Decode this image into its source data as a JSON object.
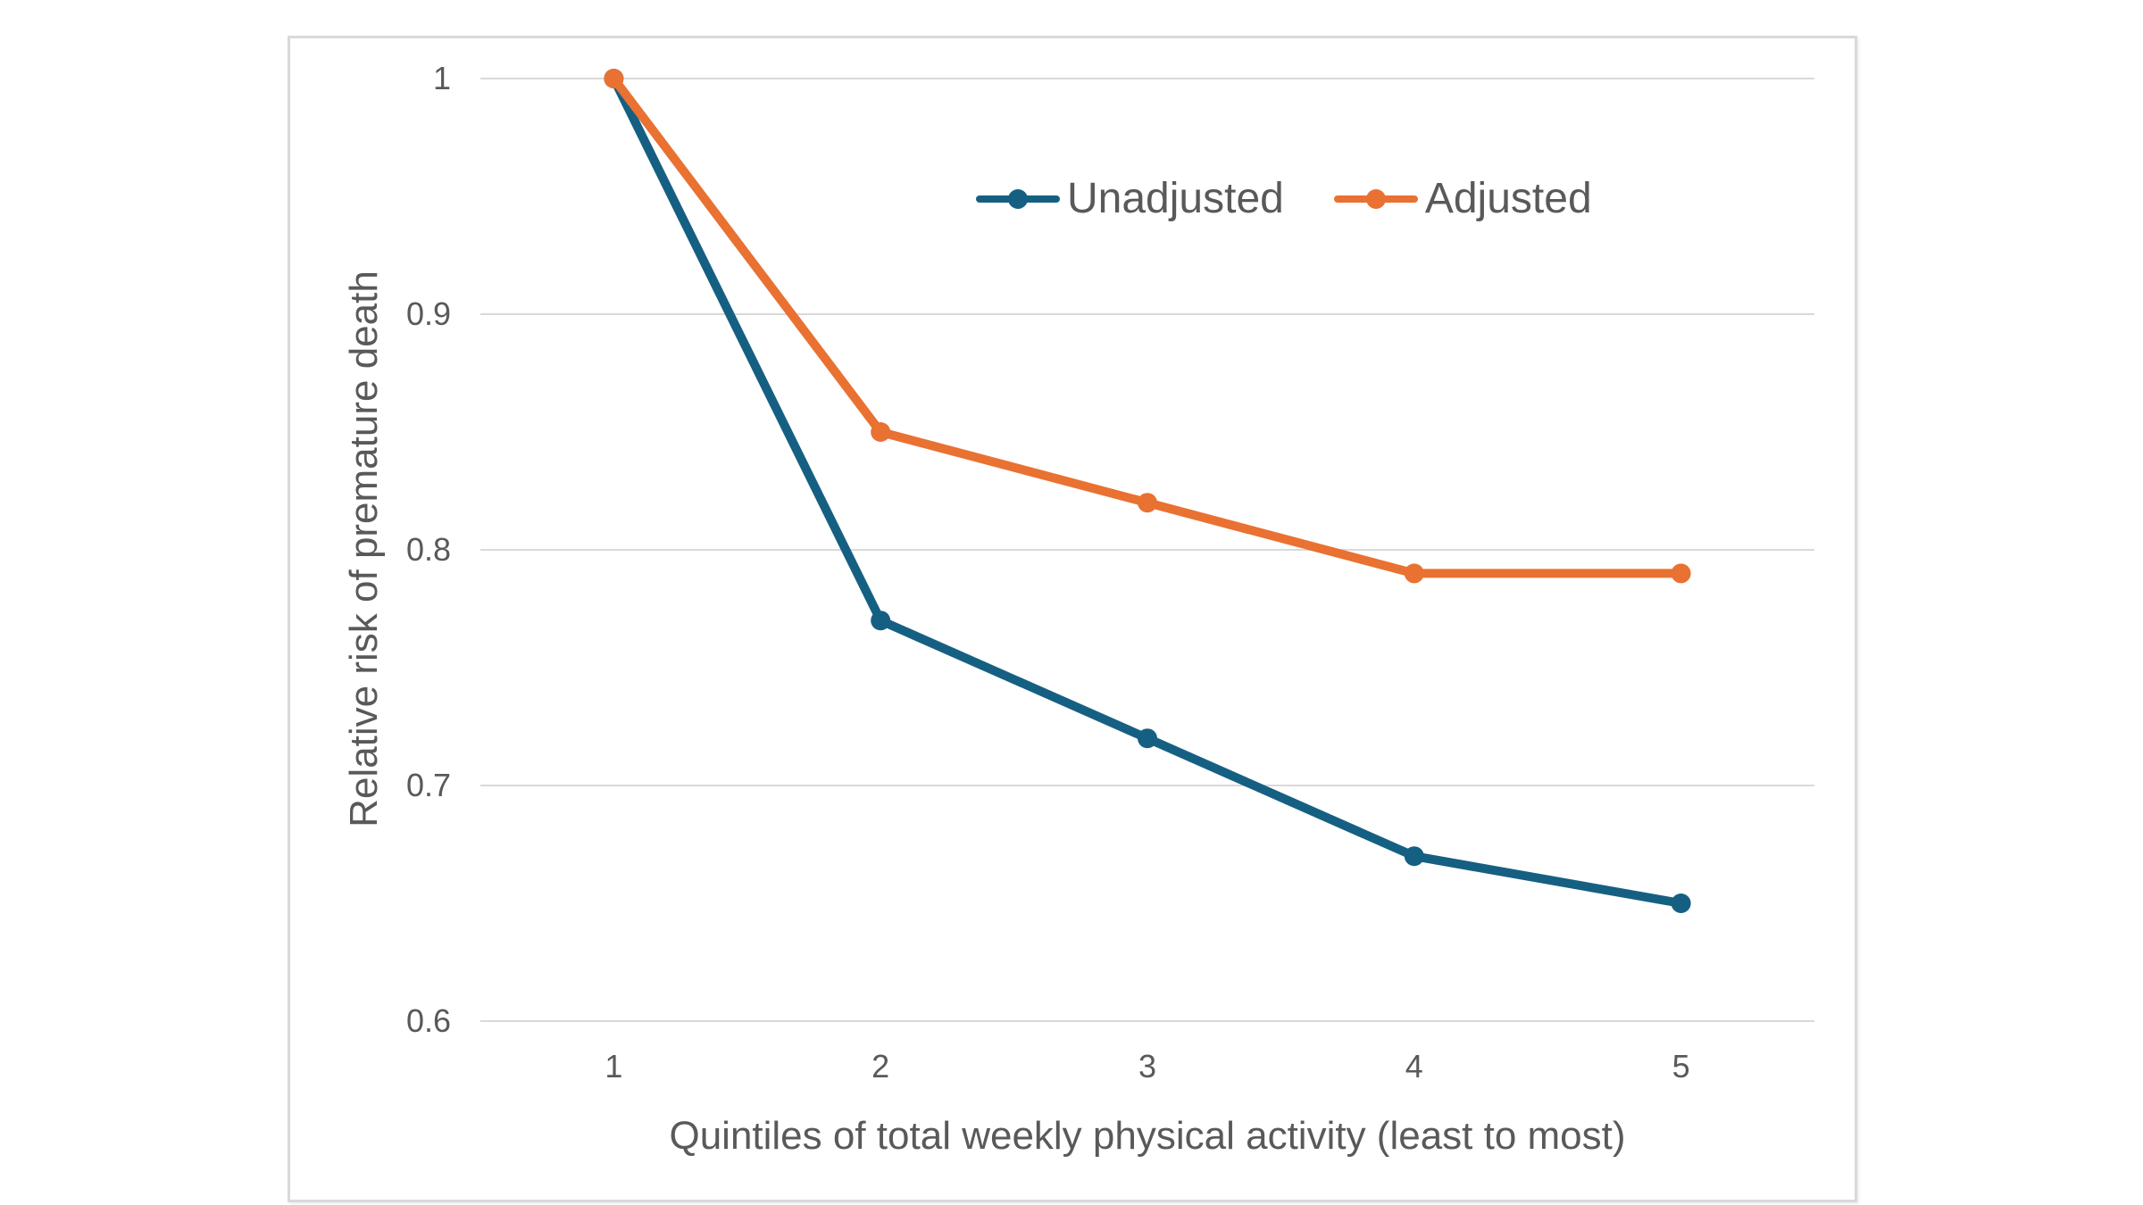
{
  "chart_data": {
    "type": "line",
    "categories": [
      "1",
      "2",
      "3",
      "4",
      "5"
    ],
    "series": [
      {
        "name": "Unadjusted",
        "color": "#156082",
        "values": [
          1.0,
          0.77,
          0.72,
          0.67,
          0.65
        ]
      },
      {
        "name": "Adjusted",
        "color": "#E97132",
        "values": [
          1.0,
          0.85,
          0.82,
          0.79,
          0.79
        ]
      }
    ],
    "title": "",
    "xlabel": "Quintiles of total weekly physical activity (least to most)",
    "ylabel": "Relative risk of premature death",
    "ylim": [
      0.6,
      1.0
    ],
    "yticks": [
      1.0,
      0.9,
      0.8,
      0.7,
      0.6
    ],
    "ytick_labels": [
      "1",
      "0.9",
      "0.8",
      "0.7",
      "0.6"
    ],
    "grid": "horizontal-only",
    "grid_color": "#D9D9D9",
    "axis_text_color": "#595959",
    "legend_position": "inside-top-right",
    "plot_background": "#FFFFFF",
    "card_border_color": "#D9D9D9",
    "marker": "circle"
  }
}
